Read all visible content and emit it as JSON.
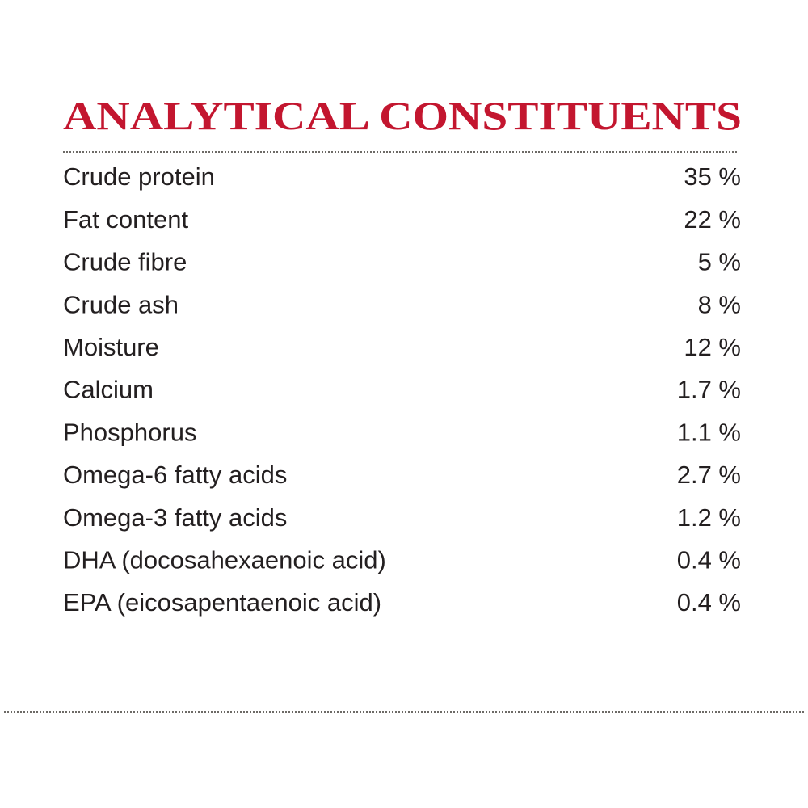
{
  "title": "ANALYTICAL CONSTITUENTS",
  "table": {
    "rows": [
      [
        "Crude protein",
        "35 %"
      ],
      [
        "Fat content",
        "22 %"
      ],
      [
        "Crude fibre",
        "5 %"
      ],
      [
        "Crude ash",
        "8 %"
      ],
      [
        "Moisture",
        "12 %"
      ],
      [
        "Calcium",
        "1.7 %"
      ],
      [
        "Phosphorus",
        "1.1 %"
      ],
      [
        "Omega-6 fatty acids",
        "2.7 %"
      ],
      [
        "Omega-3 fatty acids",
        "1.2 %"
      ],
      [
        "DHA (docosahexaenoic acid)",
        "0.4 %"
      ],
      [
        "EPA (eicosapentaenoic acid)",
        "0.4 %"
      ]
    ]
  }
}
